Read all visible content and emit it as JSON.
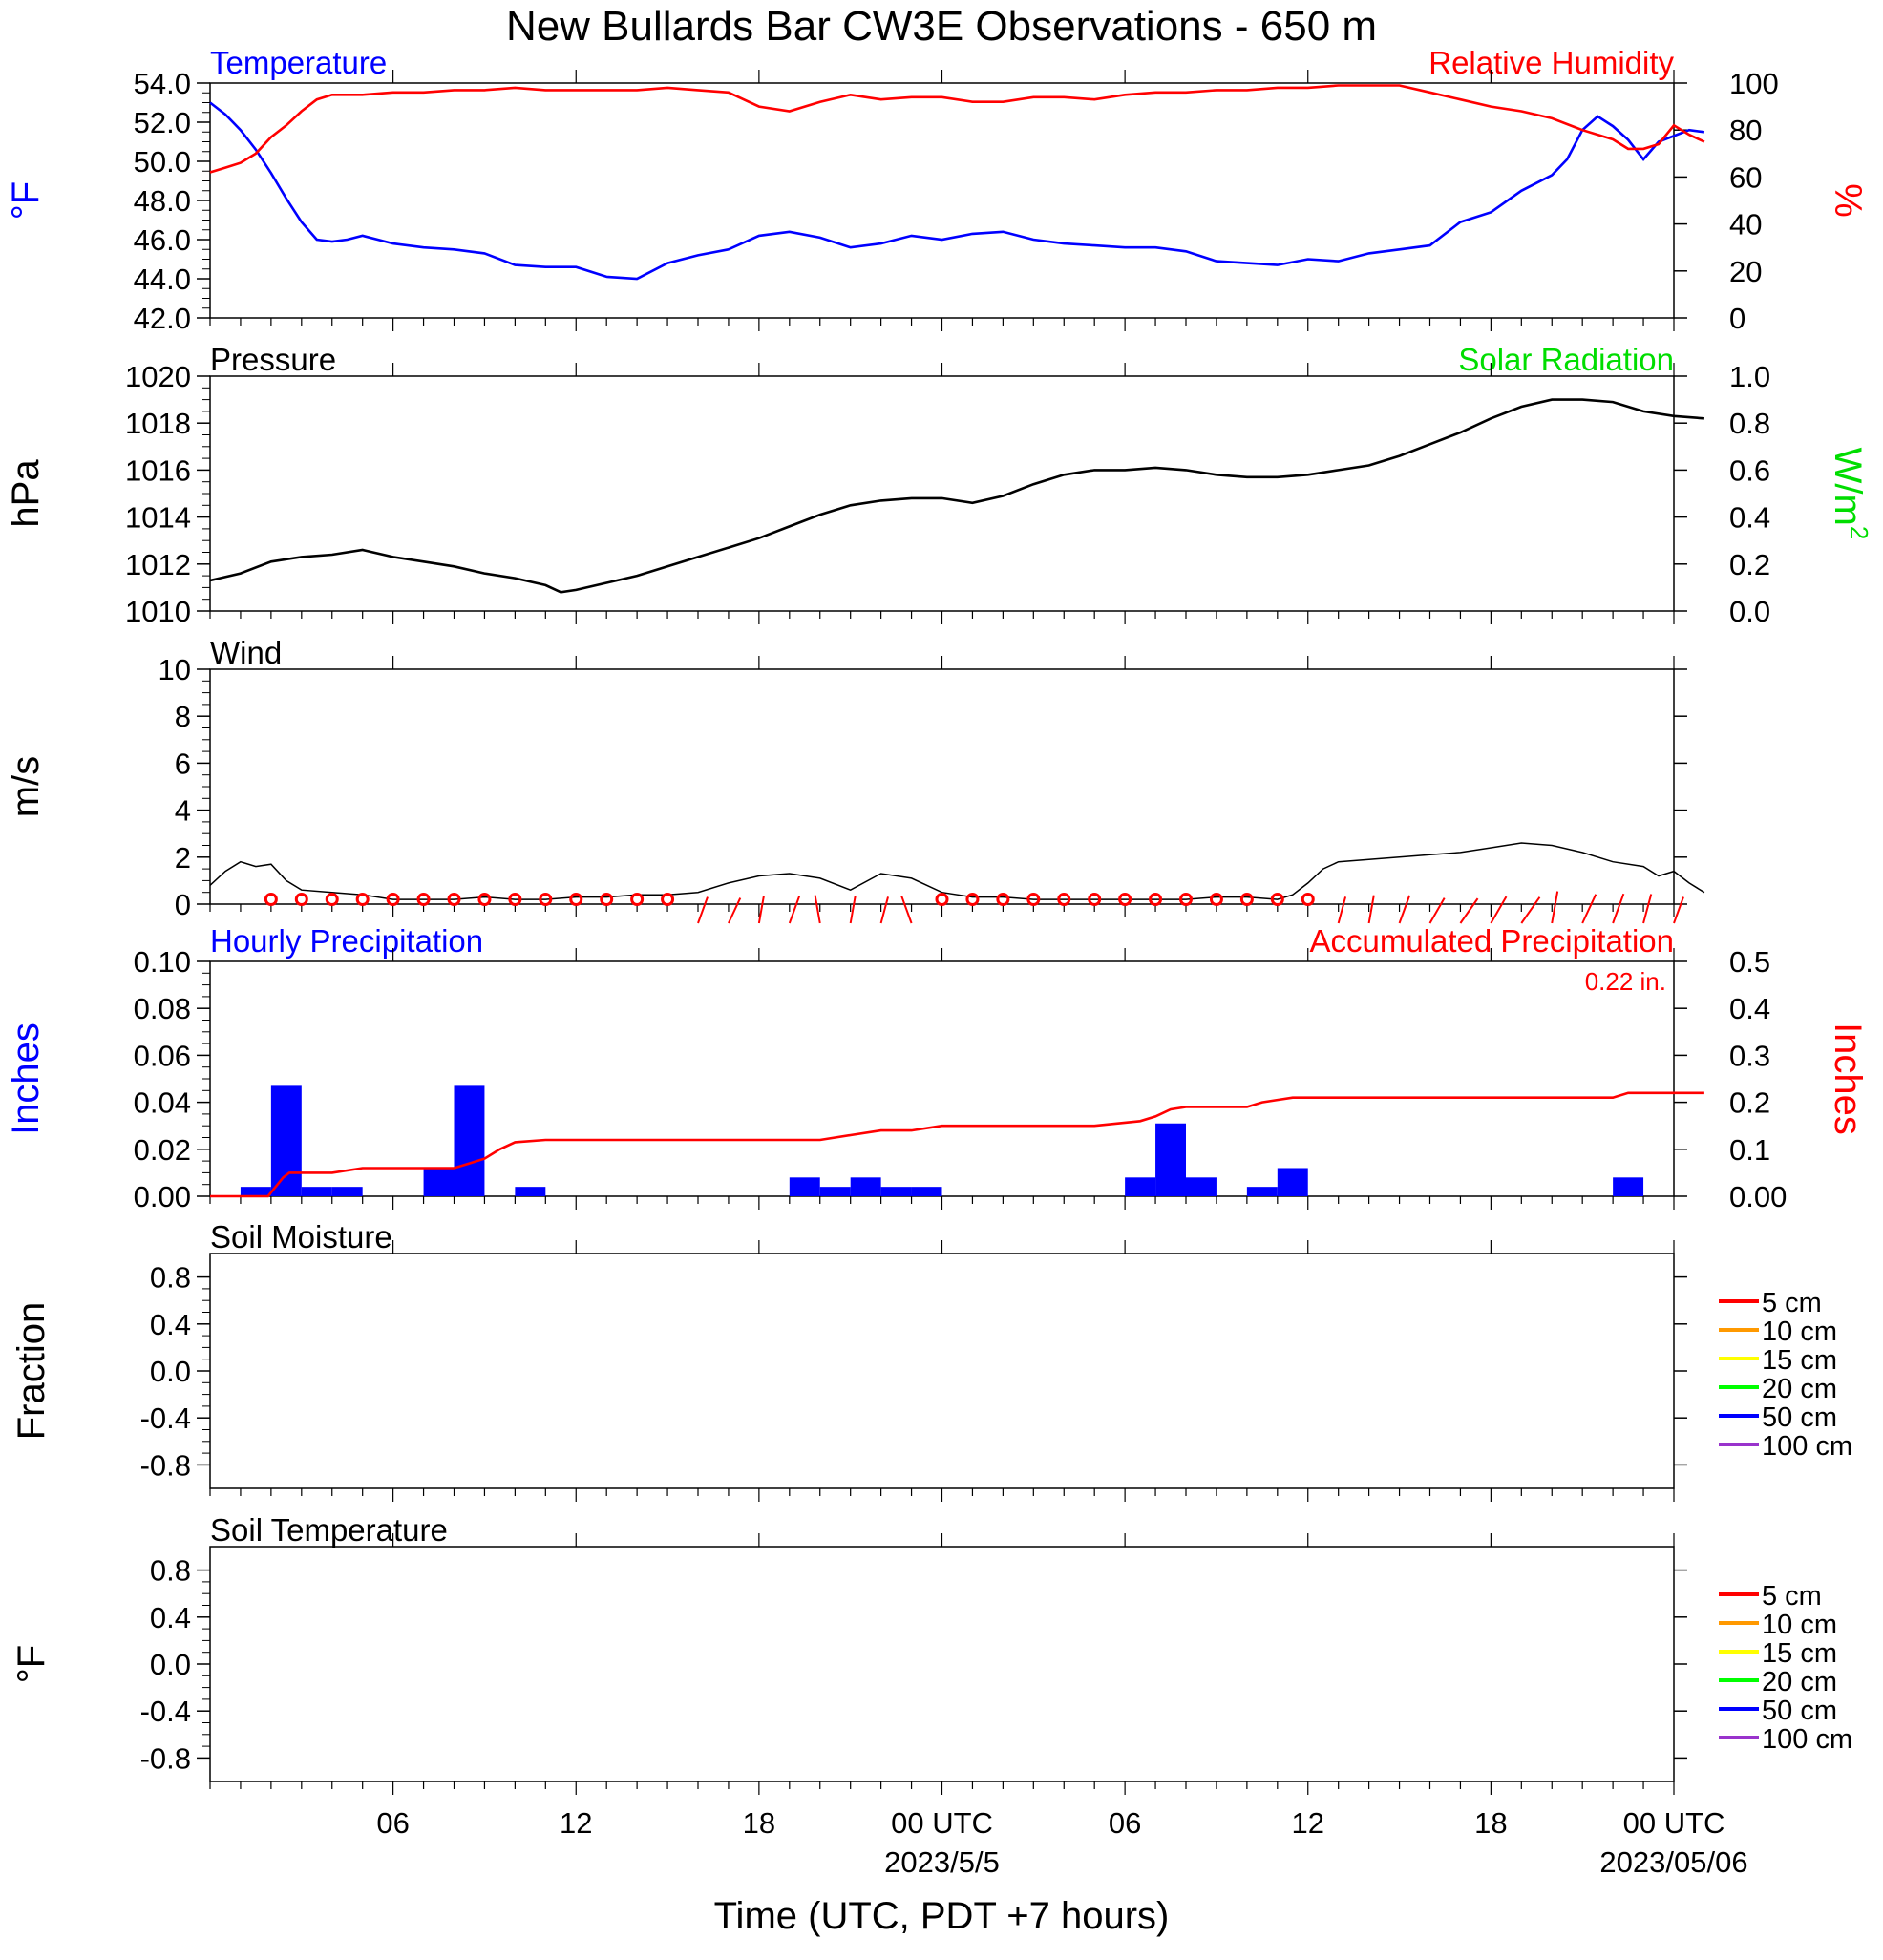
{
  "figure": {
    "title": "New Bullards Bar CW3E Observations - 650 m",
    "xlabel": "Time (UTC, PDT +7 hours)",
    "x_tick_labels": [
      "06",
      "12",
      "18",
      "00 UTC",
      "06",
      "12",
      "18",
      "00 UTC"
    ],
    "x_tick_hours": [
      6,
      12,
      18,
      24,
      30,
      36,
      42,
      48
    ],
    "date_labels": [
      {
        "text": "2023/5/5",
        "hour": 24
      },
      {
        "text": "2023/05/06",
        "hour": 48
      }
    ],
    "time_range_hours": [
      0,
      48
    ]
  },
  "colors": {
    "temperature": "#0000ff",
    "humidity": "#ff0000",
    "pressure": "#000000",
    "solar": "#00dd00",
    "wind": "#000000",
    "barb": "#ff0000",
    "hourly_precip": "#0000ff",
    "accum_precip": "#ff0000"
  },
  "chart_data": [
    {
      "id": "temp_rh",
      "type": "line",
      "left_title": "Temperature",
      "right_title": "Relative Humidity",
      "left_ylabel": "°F",
      "right_ylabel": "%",
      "left_ylim": [
        42,
        54
      ],
      "right_ylim": [
        0,
        100
      ],
      "left_ticks": [
        "54.0",
        "52.0",
        "50.0",
        "48.0",
        "46.0",
        "44.0",
        "42.0"
      ],
      "right_ticks": [
        "100",
        "80",
        "60",
        "40",
        "20",
        "0"
      ],
      "series": [
        {
          "name": "Temperature",
          "axis": "left",
          "x": [
            0,
            0.5,
            1,
            1.5,
            2,
            2.5,
            3,
            3.5,
            4,
            4.5,
            5,
            6,
            7,
            8,
            9,
            10,
            11,
            12,
            13,
            14,
            15,
            16,
            17,
            18,
            19,
            20,
            21,
            22,
            23,
            24,
            25,
            26,
            27,
            28,
            29,
            30,
            31,
            32,
            33,
            34,
            35,
            36,
            37,
            38,
            39,
            40,
            41,
            42,
            43,
            44,
            44.5,
            45,
            45.5,
            46,
            46.5,
            47,
            47.5,
            48,
            48.5,
            49
          ],
          "y": [
            53.0,
            52.4,
            51.6,
            50.6,
            49.4,
            48.1,
            46.9,
            46.0,
            45.9,
            46.0,
            46.2,
            45.8,
            45.6,
            45.5,
            45.3,
            44.7,
            44.6,
            44.6,
            44.1,
            44.0,
            44.8,
            45.2,
            45.5,
            46.2,
            46.4,
            46.1,
            45.6,
            45.8,
            46.2,
            46.0,
            46.3,
            46.4,
            46.0,
            45.8,
            45.7,
            45.6,
            45.6,
            45.4,
            44.9,
            44.8,
            44.7,
            45.0,
            44.9,
            45.3,
            45.5,
            45.7,
            46.9,
            47.4,
            48.5,
            49.3,
            50.1,
            51.6,
            52.3,
            51.8,
            51.1,
            50.1,
            51.0,
            51.3,
            51.6,
            51.5
          ]
        },
        {
          "name": "Relative Humidity",
          "axis": "right",
          "x": [
            0,
            0.5,
            1,
            1.5,
            2,
            2.5,
            3,
            3.5,
            4,
            5,
            6,
            7,
            8,
            9,
            10,
            11,
            12,
            13,
            14,
            15,
            16,
            17,
            18,
            19,
            20,
            21,
            22,
            23,
            24,
            25,
            26,
            27,
            28,
            29,
            30,
            31,
            32,
            33,
            34,
            35,
            36,
            37,
            38,
            39,
            40,
            41,
            42,
            43,
            44,
            45,
            46,
            46.5,
            47,
            47.5,
            48,
            48.5,
            49
          ],
          "y": [
            62,
            64,
            66,
            70,
            77,
            82,
            88,
            93,
            95,
            95,
            96,
            96,
            97,
            97,
            98,
            97,
            97,
            97,
            97,
            98,
            97,
            96,
            90,
            88,
            92,
            95,
            93,
            94,
            94,
            92,
            92,
            94,
            94,
            93,
            95,
            96,
            96,
            97,
            97,
            98,
            98,
            99,
            99,
            99,
            96,
            93,
            90,
            88,
            85,
            80,
            76,
            72,
            72,
            74,
            82,
            78,
            75
          ]
        }
      ]
    },
    {
      "id": "pressure_solar",
      "type": "line",
      "left_title": "Pressure",
      "right_title": "Solar Radiation",
      "left_ylabel": "hPa",
      "right_ylabel": "W/m",
      "right_ylabel_sup": "2",
      "left_ylim": [
        1010,
        1020
      ],
      "right_ylim": [
        0,
        1
      ],
      "left_ticks": [
        "1020",
        "1018",
        "1016",
        "1014",
        "1012",
        "1010"
      ],
      "right_ticks": [
        "1.0",
        "0.8",
        "0.6",
        "0.4",
        "0.2",
        "0.0"
      ],
      "series": [
        {
          "name": "Pressure",
          "axis": "left",
          "x": [
            0,
            1,
            2,
            3,
            4,
            5,
            6,
            7,
            8,
            9,
            10,
            11,
            11.5,
            12,
            13,
            14,
            15,
            16,
            17,
            18,
            19,
            20,
            21,
            22,
            23,
            24,
            25,
            26,
            27,
            28,
            29,
            30,
            31,
            32,
            33,
            34,
            35,
            36,
            37,
            38,
            39,
            40,
            41,
            42,
            43,
            44,
            45,
            46,
            47,
            48,
            49
          ],
          "y": [
            1011.3,
            1011.6,
            1012.1,
            1012.3,
            1012.4,
            1012.6,
            1012.3,
            1012.1,
            1011.9,
            1011.6,
            1011.4,
            1011.1,
            1010.8,
            1010.9,
            1011.2,
            1011.5,
            1011.9,
            1012.3,
            1012.7,
            1013.1,
            1013.6,
            1014.1,
            1014.5,
            1014.7,
            1014.8,
            1014.8,
            1014.6,
            1014.9,
            1015.4,
            1015.8,
            1016.0,
            1016.0,
            1016.1,
            1016.0,
            1015.8,
            1015.7,
            1015.7,
            1015.8,
            1016.0,
            1016.2,
            1016.6,
            1017.1,
            1017.6,
            1018.2,
            1018.7,
            1019.0,
            1019.0,
            1018.9,
            1018.5,
            1018.3,
            1018.2
          ]
        },
        {
          "name": "Solar Radiation",
          "axis": "right",
          "x": [],
          "y": []
        }
      ]
    },
    {
      "id": "wind",
      "type": "line",
      "left_title": "Wind",
      "left_ylabel": "m/s",
      "left_ylim": [
        0,
        10
      ],
      "left_ticks": [
        "10",
        "8",
        "6",
        "4",
        "2",
        "0"
      ],
      "series": [
        {
          "name": "Wind speed",
          "axis": "left",
          "x": [
            0,
            0.5,
            1,
            1.5,
            2,
            2.5,
            3,
            4,
            5,
            6,
            7,
            8,
            9,
            10,
            11,
            12,
            13,
            14,
            15,
            16,
            17,
            18,
            19,
            20,
            21,
            22,
            23,
            24,
            25,
            26,
            27,
            28,
            29,
            30,
            31,
            32,
            33,
            34,
            35,
            35.5,
            36,
            36.5,
            37,
            38,
            39,
            40,
            41,
            42,
            43,
            44,
            45,
            46,
            47,
            47.5,
            48,
            48.5,
            49
          ],
          "y": [
            0.8,
            1.4,
            1.8,
            1.6,
            1.7,
            1.0,
            0.6,
            0.5,
            0.4,
            0.2,
            0.2,
            0.2,
            0.3,
            0.2,
            0.2,
            0.3,
            0.3,
            0.4,
            0.4,
            0.5,
            0.9,
            1.2,
            1.3,
            1.1,
            0.6,
            1.3,
            1.1,
            0.5,
            0.3,
            0.3,
            0.2,
            0.2,
            0.2,
            0.2,
            0.2,
            0.2,
            0.3,
            0.3,
            0.2,
            0.4,
            0.9,
            1.5,
            1.8,
            1.9,
            2.0,
            2.1,
            2.2,
            2.4,
            2.6,
            2.5,
            2.2,
            1.8,
            1.6,
            1.2,
            1.4,
            0.9,
            0.5
          ]
        },
        {
          "name": "Wind barbs",
          "axis": "left",
          "hours": [
            2,
            3,
            4,
            5,
            6,
            7,
            8,
            9,
            10,
            11,
            12,
            13,
            14,
            15,
            16,
            17,
            18,
            19,
            20,
            21,
            22,
            23,
            24,
            25,
            26,
            27,
            28,
            29,
            30,
            31,
            32,
            33,
            34,
            35,
            36,
            37,
            38,
            39,
            40,
            41,
            42,
            43,
            44,
            45,
            46,
            47,
            48
          ],
          "speed": [
            0.4,
            0.3,
            0.4,
            0.1,
            0.1,
            0.1,
            0.1,
            0.1,
            0.1,
            0.1,
            0.2,
            0.3,
            0.4,
            0.2,
            1.2,
            1.2,
            1.2,
            1.4,
            1.3,
            1.2,
            1.1,
            1.4,
            0.4,
            0.2,
            0.3,
            0.1,
            0.1,
            0.1,
            0.1,
            0.1,
            0.1,
            0.1,
            0.1,
            0.1,
            0.1,
            1.1,
            1.3,
            1.5,
            1.4,
            1.6,
            1.7,
            1.9,
            2.0,
            1.9,
            1.8,
            1.6,
            1.2
          ],
          "dir": [
            0,
            0,
            0,
            0,
            0,
            0,
            0,
            0,
            0,
            0,
            0,
            0,
            0,
            0,
            200,
            205,
            190,
            200,
            170,
            190,
            195,
            160,
            0,
            0,
            0,
            0,
            0,
            0,
            0,
            0,
            0,
            0,
            0,
            0,
            0,
            195,
            190,
            200,
            210,
            215,
            210,
            215,
            190,
            205,
            200,
            195,
            200
          ]
        }
      ]
    },
    {
      "id": "precip",
      "type": "bar",
      "left_title": "Hourly Precipitation",
      "right_title": "Accumulated Precipitation",
      "total_label": "0.22 in.",
      "left_ylabel": "Inches",
      "right_ylabel": "Inches",
      "left_ylim": [
        0,
        0.1
      ],
      "right_ylim": [
        0,
        0.5
      ],
      "left_ticks": [
        "0.10",
        "0.08",
        "0.06",
        "0.04",
        "0.02",
        "0.00"
      ],
      "right_ticks": [
        "0.5",
        "0.4",
        "0.3",
        "0.2",
        "0.1",
        "0.00"
      ],
      "series": [
        {
          "name": "Hourly Precipitation",
          "axis": "left",
          "hours": [
            1,
            2,
            3,
            4,
            7,
            8,
            10,
            19,
            20,
            21,
            22,
            23,
            30,
            31,
            32,
            34,
            35,
            46
          ],
          "values": [
            0.004,
            0.047,
            0.004,
            0.004,
            0.012,
            0.047,
            0.004,
            0.008,
            0.004,
            0.008,
            0.004,
            0.004,
            0.008,
            0.031,
            0.008,
            0.004,
            0.012,
            0.008
          ]
        },
        {
          "name": "Accumulated Precipitation",
          "axis": "right",
          "x": [
            0,
            1.9,
            2.4,
            2.6,
            4,
            5,
            7,
            8,
            8.5,
            9,
            9.5,
            10,
            11,
            19,
            20,
            21,
            22,
            23,
            24,
            29,
            30.5,
            31,
            31.5,
            32,
            34,
            34.5,
            35,
            35.5,
            36,
            46,
            46.5,
            49
          ],
          "y": [
            0,
            0,
            0.04,
            0.05,
            0.05,
            0.06,
            0.06,
            0.06,
            0.07,
            0.08,
            0.1,
            0.115,
            0.12,
            0.12,
            0.12,
            0.13,
            0.14,
            0.14,
            0.15,
            0.15,
            0.16,
            0.17,
            0.185,
            0.19,
            0.19,
            0.2,
            0.205,
            0.21,
            0.21,
            0.21,
            0.22,
            0.22
          ]
        }
      ]
    },
    {
      "id": "soil_moisture",
      "type": "line",
      "left_title": "Soil Moisture",
      "left_ylabel": "Fraction",
      "left_ylim": [
        -1,
        1
      ],
      "left_ticks": [
        "0.8",
        "0.4",
        "0.0",
        "-0.4",
        "-0.8"
      ],
      "legend": [
        {
          "label": "5 cm",
          "color": "#ff0000"
        },
        {
          "label": "10 cm",
          "color": "#ff9900"
        },
        {
          "label": "15 cm",
          "color": "#ffff00"
        },
        {
          "label": "20 cm",
          "color": "#00ff00"
        },
        {
          "label": "50 cm",
          "color": "#0000ff"
        },
        {
          "label": "100 cm",
          "color": "#9933cc"
        }
      ],
      "series": []
    },
    {
      "id": "soil_temperature",
      "type": "line",
      "left_title": "Soil Temperature",
      "left_ylabel": "°F",
      "left_ylim": [
        -1,
        1
      ],
      "left_ticks": [
        "0.8",
        "0.4",
        "0.0",
        "-0.4",
        "-0.8"
      ],
      "legend": [
        {
          "label": "5 cm",
          "color": "#ff0000"
        },
        {
          "label": "10 cm",
          "color": "#ff9900"
        },
        {
          "label": "15 cm",
          "color": "#ffff00"
        },
        {
          "label": "20 cm",
          "color": "#00ff00"
        },
        {
          "label": "50 cm",
          "color": "#0000ff"
        },
        {
          "label": "100 cm",
          "color": "#9933cc"
        }
      ],
      "series": []
    }
  ]
}
